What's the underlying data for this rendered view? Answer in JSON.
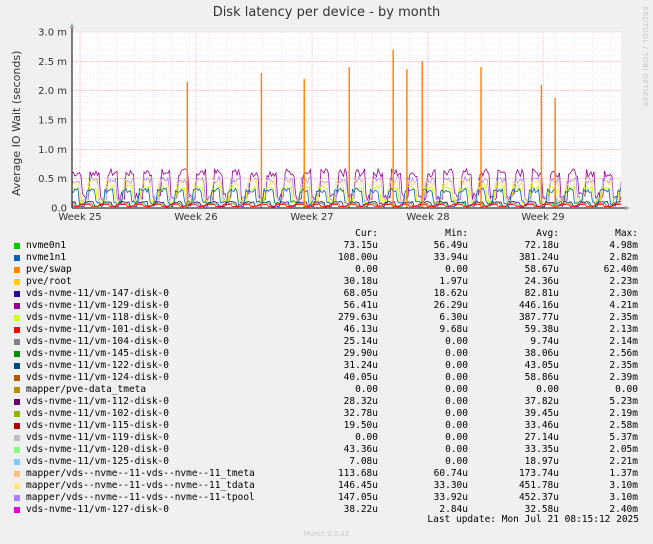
{
  "chart_data": {
    "type": "line",
    "title": "Disk latency per device - by month",
    "ylabel": "Average IO Wait (seconds)",
    "xlabel": "",
    "y_ticks": [
      "0.0",
      "0.5 m",
      "1.0 m",
      "1.5 m",
      "2.0 m",
      "2.5 m",
      "3.0 m"
    ],
    "ylim": [
      0,
      3.0
    ],
    "y_unit": "m (milliseconds)",
    "x_ticks": [
      "Week 25",
      "Week 26",
      "Week 27",
      "Week 28",
      "Week 29"
    ],
    "grid": true,
    "legend_headers": [
      "Cur:",
      "Min:",
      "Avg:",
      "Max:"
    ],
    "series": [
      {
        "name": "nvme0n1",
        "color": "#00cc00",
        "cur": "73.15u",
        "min": "56.49u",
        "avg": "72.18u",
        "max": "4.98m"
      },
      {
        "name": "nvme1n1",
        "color": "#0066b3",
        "cur": "108.00u",
        "min": "33.94u",
        "avg": "381.24u",
        "max": "2.82m"
      },
      {
        "name": "pve/swap",
        "color": "#ff8000",
        "cur": "0.00",
        "min": "0.00",
        "avg": "58.67u",
        "max": "62.40m"
      },
      {
        "name": "pve/root",
        "color": "#ffcc00",
        "cur": "30.18u",
        "min": "1.97u",
        "avg": "24.36u",
        "max": "2.23m"
      },
      {
        "name": "vds-nvme-11/vm-147-disk-0",
        "color": "#330099",
        "cur": "68.05u",
        "min": "18.62u",
        "avg": "82.81u",
        "max": "2.30m"
      },
      {
        "name": "vds-nvme-11/vm-129-disk-0",
        "color": "#990099",
        "cur": "56.41u",
        "min": "26.29u",
        "avg": "446.16u",
        "max": "4.21m"
      },
      {
        "name": "vds-nvme-11/vm-118-disk-0",
        "color": "#ccff00",
        "cur": "279.63u",
        "min": "6.30u",
        "avg": "387.77u",
        "max": "2.35m"
      },
      {
        "name": "vds-nvme-11/vm-101-disk-0",
        "color": "#ff0000",
        "cur": "46.13u",
        "min": "9.68u",
        "avg": "59.38u",
        "max": "2.13m"
      },
      {
        "name": "vds-nvme-11/vm-104-disk-0",
        "color": "#808080",
        "cur": "25.14u",
        "min": "0.00",
        "avg": "9.74u",
        "max": "2.14m"
      },
      {
        "name": "vds-nvme-11/vm-145-disk-0",
        "color": "#008f00",
        "cur": "29.90u",
        "min": "0.00",
        "avg": "38.06u",
        "max": "2.56m"
      },
      {
        "name": "vds-nvme-11/vm-122-disk-0",
        "color": "#00487d",
        "cur": "31.24u",
        "min": "0.00",
        "avg": "43.05u",
        "max": "2.35m"
      },
      {
        "name": "vds-nvme-11/vm-124-disk-0",
        "color": "#b35a00",
        "cur": "40.05u",
        "min": "0.00",
        "avg": "58.86u",
        "max": "2.39m"
      },
      {
        "name": "mapper/pve-data_tmeta",
        "color": "#b38f00",
        "cur": "0.00",
        "min": "0.00",
        "avg": "0.00",
        "max": "0.00"
      },
      {
        "name": "vds-nvme-11/vm-112-disk-0",
        "color": "#6b006b",
        "cur": "28.32u",
        "min": "0.00",
        "avg": "37.82u",
        "max": "5.23m"
      },
      {
        "name": "vds-nvme-11/vm-102-disk-0",
        "color": "#8fb300",
        "cur": "32.78u",
        "min": "0.00",
        "avg": "39.45u",
        "max": "2.19m"
      },
      {
        "name": "vds-nvme-11/vm-115-disk-0",
        "color": "#b30000",
        "cur": "19.50u",
        "min": "0.00",
        "avg": "33.46u",
        "max": "2.58m"
      },
      {
        "name": "vds-nvme-11/vm-119-disk-0",
        "color": "#bebebe",
        "cur": "0.00",
        "min": "0.00",
        "avg": "27.14u",
        "max": "5.37m"
      },
      {
        "name": "vds-nvme-11/vm-120-disk-0",
        "color": "#80ff80",
        "cur": "43.36u",
        "min": "0.00",
        "avg": "33.35u",
        "max": "2.05m"
      },
      {
        "name": "vds-nvme-11/vm-125-disk-0",
        "color": "#80c9ff",
        "cur": "7.08u",
        "min": "0.00",
        "avg": "18.97u",
        "max": "2.21m"
      },
      {
        "name": "mapper/vds--nvme--11-vds--nvme--11_tmeta",
        "color": "#ffc080",
        "cur": "113.68u",
        "min": "60.74u",
        "avg": "173.74u",
        "max": "1.37m"
      },
      {
        "name": "mapper/vds--nvme--11-vds--nvme--11_tdata",
        "color": "#ffe680",
        "cur": "146.45u",
        "min": "33.30u",
        "avg": "451.78u",
        "max": "3.10m"
      },
      {
        "name": "mapper/vds--nvme--11-vds--nvme--11-tpool",
        "color": "#aa80ff",
        "cur": "147.05u",
        "min": "33.92u",
        "avg": "452.37u",
        "max": "3.10m"
      },
      {
        "name": "vds-nvme-11/vm-127-disk-0",
        "color": "#ee00cc",
        "cur": "38.22u",
        "min": "2.84u",
        "avg": "32.58u",
        "max": "2.40m"
      }
    ],
    "swap_spikes": [
      {
        "x": 0.21,
        "y": 2.15
      },
      {
        "x": 0.345,
        "y": 2.3
      },
      {
        "x": 0.423,
        "y": 2.2
      },
      {
        "x": 0.505,
        "y": 2.4
      },
      {
        "x": 0.585,
        "y": 2.7
      },
      {
        "x": 0.61,
        "y": 2.37
      },
      {
        "x": 0.638,
        "y": 2.5
      },
      {
        "x": 0.745,
        "y": 2.4
      },
      {
        "x": 0.855,
        "y": 2.1
      },
      {
        "x": 0.88,
        "y": 1.88
      }
    ]
  },
  "last_update": "Last update: Mon Jul 21 08:15:12 2025",
  "side_text": "RRDTOOL / TOBI OETIKER",
  "footer": "Munin 2.0.42"
}
